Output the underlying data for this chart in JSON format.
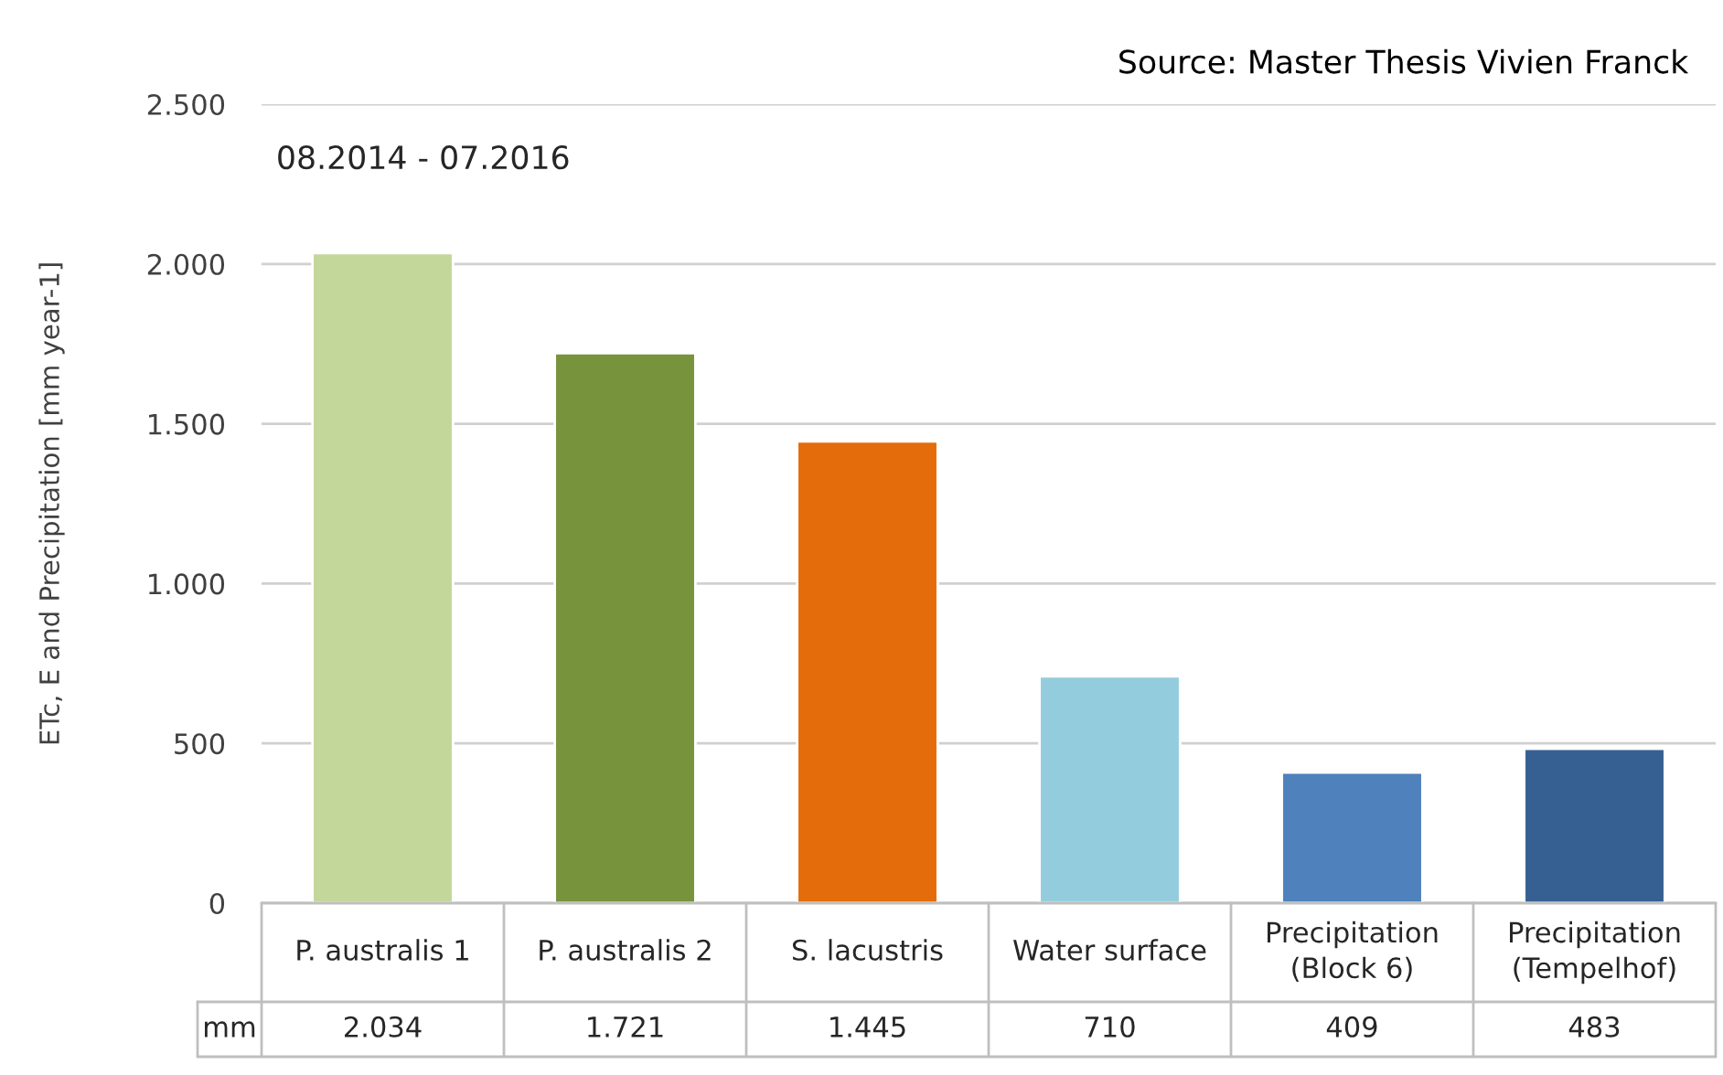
{
  "chart_data": {
    "type": "bar",
    "ylabel": "ETc, E and Precipitation [mm year-1]",
    "annotations": [
      "Source: Master Thesis Vivien Franck",
      "08.2014 - 07.2016",
      "mm"
    ],
    "categories": [
      "P. australis 1",
      "P. australis 2",
      "S. lacustris",
      "Water surface",
      "Precipitation\n(Block 6)",
      "Precipitation\n(Tempelhof)"
    ],
    "values": [
      2034,
      1721,
      1445,
      710,
      409,
      483
    ],
    "value_labels": [
      "2.034",
      "1.721",
      "1.445",
      "710",
      "409",
      "483"
    ],
    "colors": [
      "#c4d79b",
      "#77933c",
      "#e46c0a",
      "#93cddd",
      "#4f81bd",
      "#366092"
    ],
    "ylim": [
      0,
      2500
    ],
    "yticks": [
      0,
      {
        "value": 500,
        "label": "500"
      },
      {
        "value": 1000,
        "label": "1.000"
      },
      {
        "value": 1500,
        "label": "1.500"
      },
      {
        "value": 2000,
        "label": "2.000"
      },
      {
        "value": 2500,
        "label": "2.500"
      }
    ],
    "grid": "y"
  }
}
